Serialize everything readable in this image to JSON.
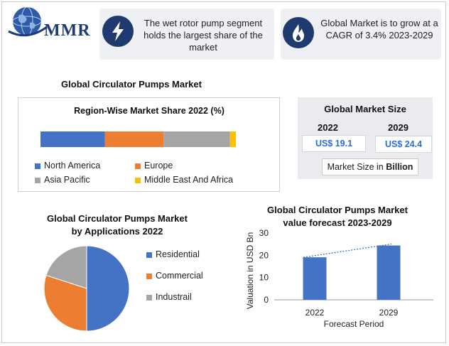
{
  "logo": {
    "text": "MMR"
  },
  "info_cards": [
    {
      "icon": "lightning-icon",
      "text": "The wet rotor pump segment holds the largest share of the market"
    },
    {
      "icon": "flame-icon",
      "text": "Global Market is to grow at a CAGR of 3.4% 2023-2029"
    }
  ],
  "main_title": "Global Circulator Pumps Market",
  "market_size": {
    "title": "Global Market Size",
    "years": [
      "2022",
      "2029"
    ],
    "values": [
      "US$ 19.1",
      "US$ 24.4"
    ],
    "unit_prefix": "Market Size in ",
    "unit_bold": "Billion"
  },
  "colors": {
    "blue": "#4472c4",
    "orange": "#ed7d31",
    "gray": "#a5a5a5",
    "yellow": "#ffc000",
    "navy": "#1f3a6e"
  },
  "chart_data": [
    {
      "type": "bar",
      "orientation": "horizontal-stacked",
      "title": "Region-Wise Market Share 2022 (%)",
      "series": [
        {
          "name": "North America",
          "value": 33,
          "color": "#4472c4"
        },
        {
          "name": "Europe",
          "value": 30,
          "color": "#ed7d31"
        },
        {
          "name": "Asia Pacific",
          "value": 34,
          "color": "#a5a5a5"
        },
        {
          "name": "Middle East And Africa",
          "value": 3,
          "color": "#ffc000"
        }
      ],
      "legend": "bottom"
    },
    {
      "type": "pie",
      "title": "Global Circulator Pumps Market by Applications 2022",
      "title_lines": [
        "Global Circulator Pumps Market",
        "by Applications 2022"
      ],
      "slices": [
        {
          "name": "Residential",
          "value": 50,
          "color": "#4472c4"
        },
        {
          "name": "Commercial",
          "value": 30,
          "color": "#ed7d31"
        },
        {
          "name": "Industrail",
          "value": 20,
          "color": "#a5a5a5"
        }
      ],
      "legend": "right"
    },
    {
      "type": "bar",
      "title": "Global Circulator Pumps Market value forecast 2023-2029",
      "title_lines": [
        "Global Circulator Pumps Market",
        "value forecast 2023-2029"
      ],
      "categories": [
        "2022",
        "2029"
      ],
      "values": [
        19.1,
        24.4
      ],
      "xlabel": "Forecast Period",
      "ylabel": "Valuation in USD Bn",
      "ylim": [
        0,
        30
      ],
      "yticks": [
        "0",
        "10",
        "20",
        "30"
      ],
      "trendline": "dotted",
      "grid": false
    }
  ]
}
